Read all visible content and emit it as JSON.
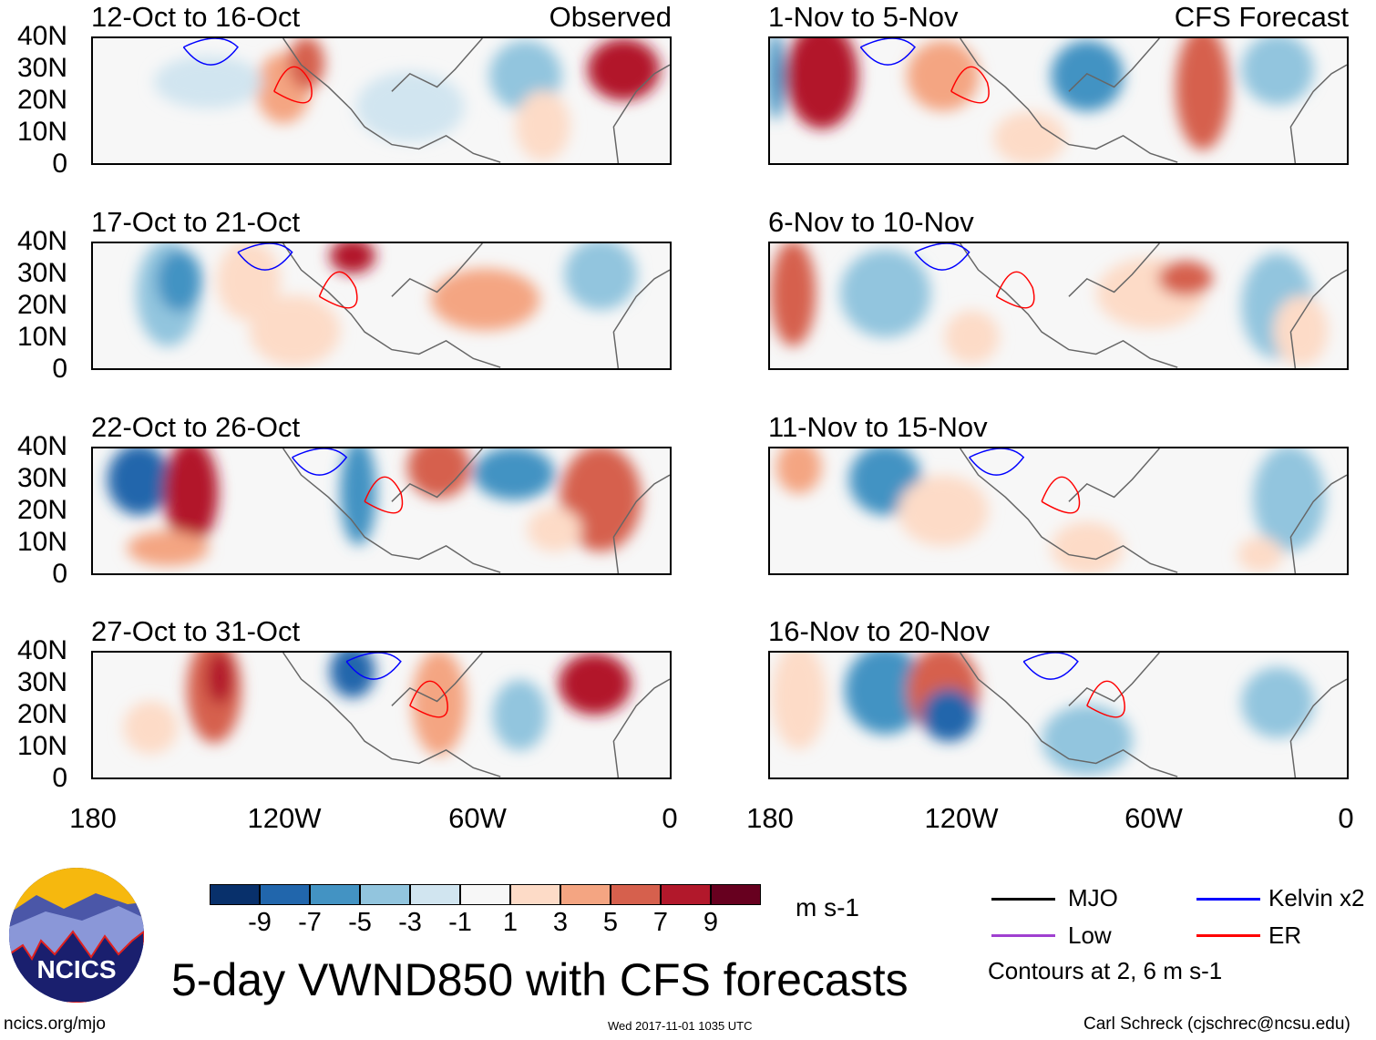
{
  "panels": {
    "observed": [
      {
        "title": "12-Oct to 16-Oct",
        "tag": "Observed"
      },
      {
        "title": "17-Oct to 21-Oct"
      },
      {
        "title": "22-Oct to 26-Oct"
      },
      {
        "title": "27-Oct to 31-Oct"
      }
    ],
    "forecast": [
      {
        "title": "1-Nov to 5-Nov",
        "tag": "CFS Forecast"
      },
      {
        "title": "6-Nov to 10-Nov"
      },
      {
        "title": "11-Nov to 15-Nov"
      },
      {
        "title": "16-Nov to 20-Nov"
      }
    ]
  },
  "y_ticks": [
    "40N",
    "30N",
    "20N",
    "10N",
    "0"
  ],
  "x_ticks": [
    "180",
    "120W",
    "60W",
    "0"
  ],
  "colorbar": {
    "labels": [
      "-9",
      "-7",
      "-5",
      "-3",
      "-1",
      "1",
      "3",
      "5",
      "7",
      "9"
    ],
    "colors": [
      "#08306b",
      "#2166ac",
      "#4393c3",
      "#92c5de",
      "#d1e5f0",
      "#f7f7f7",
      "#fddbc7",
      "#f4a582",
      "#d6604d",
      "#b2182b",
      "#67001f"
    ],
    "units": "m s-1"
  },
  "legend": {
    "items": [
      {
        "label": "MJO",
        "color": "#000000"
      },
      {
        "label": "Kelvin x2",
        "color": "#0000ff"
      },
      {
        "label": "Low",
        "color": "#a040d0"
      },
      {
        "label": "ER",
        "color": "#ff0000"
      }
    ],
    "contours_note": "Contours at 2, 6 m s-1"
  },
  "title": "5-day VWND850 with CFS forecasts",
  "logo_text": "NCICS",
  "footer": {
    "url": "ncics.org/mjo",
    "timestamp": "Wed 2017-11-01 1035 UTC",
    "credit": "Carl Schreck (cjschrec@ncsu.edu)"
  }
}
